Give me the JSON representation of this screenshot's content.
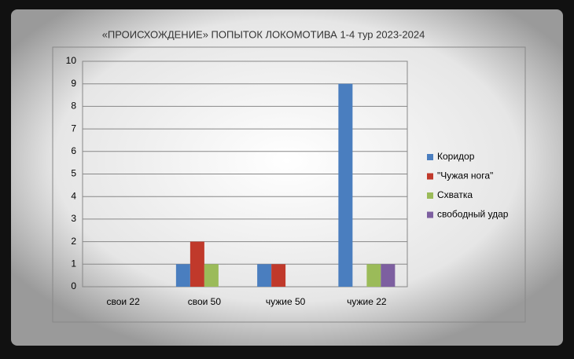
{
  "chart_data": {
    "type": "bar",
    "title": "«ПРОИСХОЖДЕНИЕ» ПОПЫТОК ЛОКОМОТИВА  1-4 тур 2023-2024",
    "categories": [
      "свои 22",
      "свои 50",
      "чужие 50",
      "чужие 22"
    ],
    "series": [
      {
        "name": "Коридор",
        "color": "#4a7ebf",
        "values": [
          0,
          1,
          1,
          9
        ]
      },
      {
        "name": "\"Чужая нога\"",
        "color": "#c0392b",
        "values": [
          0,
          2,
          1,
          0
        ]
      },
      {
        "name": "Схватка",
        "color": "#9bbb59",
        "values": [
          0,
          1,
          0,
          1
        ]
      },
      {
        "name": "свободный удар",
        "color": "#7d5fa0",
        "values": [
          0,
          0,
          0,
          1
        ]
      }
    ],
    "ylim": [
      0,
      10
    ],
    "yticks": [
      0,
      1,
      2,
      3,
      4,
      5,
      6,
      7,
      8,
      9,
      10
    ],
    "grid": true,
    "legend": "right"
  }
}
